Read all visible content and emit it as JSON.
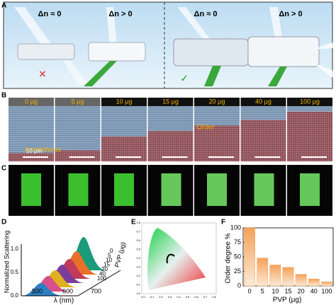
{
  "panels": {
    "A": {
      "label": "A",
      "texts": [
        "Δn ≈ 0",
        "Δn > 0",
        "Δn ≈ 0",
        "Δn > 0"
      ]
    },
    "B": {
      "label": "B",
      "doses": [
        "0 μg",
        "5 μg",
        "10 μg",
        "15 μg",
        "20 μg",
        "40 μg",
        "100 μg"
      ],
      "order": "Order",
      "amorphous": "Amorphous",
      "scale": "10 μm"
    },
    "C": {
      "label": "C"
    },
    "D": {
      "label": "D",
      "ylabel": "Normalized Scattering",
      "yticks": [
        "0.0",
        "0.5",
        "1.0"
      ],
      "xticks": [
        "500",
        "600",
        "700"
      ],
      "xlabel": "λ (nm)",
      "zticks": [
        "0",
        "5",
        "10",
        "15",
        "20",
        "40",
        "100"
      ],
      "zlabel": "PVP (μg)"
    },
    "E": {
      "label": "E",
      "ticks": [
        "0.0",
        "0.1",
        "0.2",
        "0.3",
        "0.4",
        "0.5",
        "0.6",
        "0.7",
        "0.8"
      ]
    },
    "F": {
      "label": "F"
    }
  },
  "chart_data": {
    "type": "bar",
    "ylabel": "Order degree %",
    "xlabel": "PVP (μg)",
    "categories": [
      "0",
      "5",
      "10",
      "15",
      "20",
      "40",
      "100"
    ],
    "values": [
      100,
      48,
      36,
      32,
      20,
      12,
      7
    ],
    "color": "#f4a259",
    "ylim": [
      0,
      100
    ],
    "yticks": [
      0,
      25,
      50,
      75,
      100
    ]
  }
}
